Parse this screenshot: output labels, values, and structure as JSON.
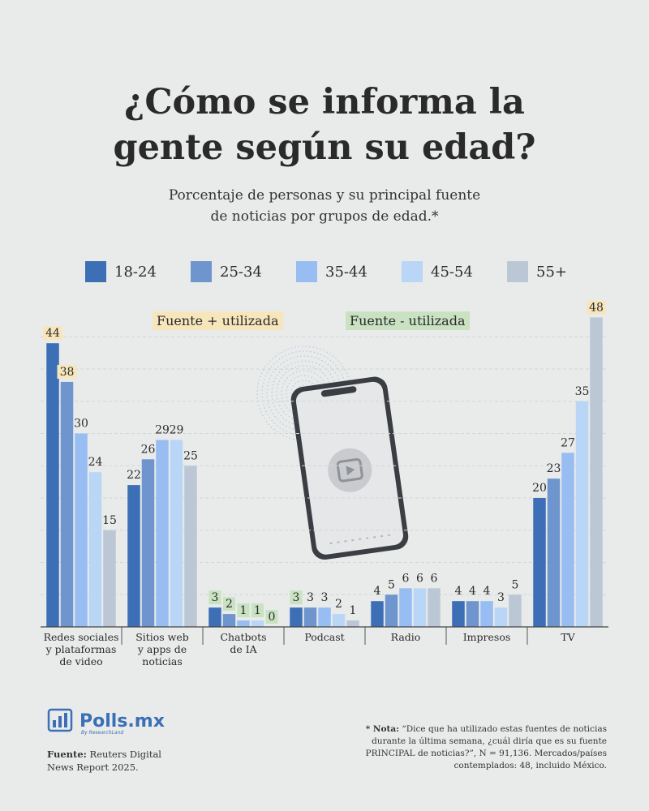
{
  "title_lines": [
    "¿Cómo se informa la",
    "gente según su edad?"
  ],
  "subtitle_lines": [
    "Porcentaje de personas y su principal fuente",
    "de noticias por grupos de edad.*"
  ],
  "tags": {
    "most": "Fuente + utilizada",
    "least": "Fuente - utilizada"
  },
  "colors": {
    "series": [
      "#3d6fb6",
      "#6f95cf",
      "#97bdf3",
      "#b9d6f7",
      "#bcc7d6"
    ],
    "highlight_most": "#f7e6bc",
    "highlight_least": "#c9e2c2",
    "brand": "#3b6fb6"
  },
  "chart_data": {
    "type": "bar",
    "categories": [
      [
        "Redes sociales",
        "y plataformas",
        "de video"
      ],
      [
        "Sitios web",
        "y apps de",
        "noticias"
      ],
      [
        "Chatbots",
        "de IA"
      ],
      [
        "Podcast"
      ],
      [
        "Radio"
      ],
      [
        "Impresos"
      ],
      [
        "TV"
      ]
    ],
    "series": [
      {
        "name": "18-24",
        "values": [
          44,
          22,
          3,
          3,
          4,
          4,
          20
        ]
      },
      {
        "name": "25-34",
        "values": [
          38,
          26,
          2,
          3,
          5,
          4,
          23
        ]
      },
      {
        "name": "35-44",
        "values": [
          30,
          29,
          1,
          3,
          6,
          4,
          27
        ]
      },
      {
        "name": "45-54",
        "values": [
          24,
          29,
          1,
          2,
          6,
          3,
          35
        ]
      },
      {
        "name": "55+",
        "values": [
          15,
          25,
          0,
          1,
          6,
          5,
          48
        ]
      }
    ],
    "highlight": {
      "most": [
        [
          0,
          0
        ],
        [
          0,
          1
        ],
        [
          6,
          4
        ]
      ],
      "least": [
        [
          2,
          0
        ],
        [
          2,
          1
        ],
        [
          2,
          2
        ],
        [
          2,
          3
        ],
        [
          2,
          4
        ],
        [
          3,
          0
        ]
      ]
    },
    "ylim": [
      0,
      50
    ],
    "grid": true,
    "legend_position": "top"
  },
  "brand": {
    "name": "Polls.mx",
    "tagline": "By ResearchLand"
  },
  "source": {
    "label": "Fuente:",
    "text_lines": [
      "Reuters Digital",
      "News Report 2025."
    ]
  },
  "note": {
    "label": "* Nota:",
    "text": "“Dice que ha utilizado estas fuentes de noticias durante la última semana, ¿cuál diría que es su fuente PRINCIPAL de noticias?”, N = 91,136. Mercados/países contemplados: 48, incluido México."
  },
  "phone_icon": "play-video-icon"
}
